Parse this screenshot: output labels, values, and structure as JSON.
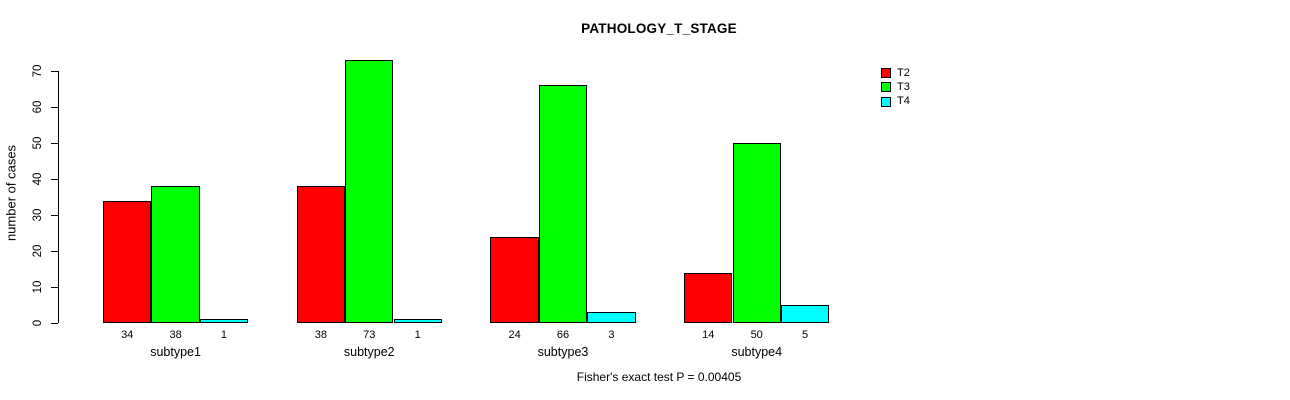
{
  "chart_data": {
    "type": "bar",
    "title": "PATHOLOGY_T_STAGE",
    "ylabel": "number of cases",
    "xlabel": "",
    "categories": [
      "subtype1",
      "subtype2",
      "subtype3",
      "subtype4"
    ],
    "series": [
      {
        "name": "T2",
        "color": "#ff0000",
        "values": [
          34,
          38,
          24,
          14
        ]
      },
      {
        "name": "T3",
        "color": "#00ff00",
        "values": [
          38,
          73,
          66,
          50
        ]
      },
      {
        "name": "T4",
        "color": "#00ffff",
        "values": [
          1,
          1,
          3,
          5
        ]
      }
    ],
    "yticks": [
      0,
      10,
      20,
      30,
      40,
      50,
      60,
      70
    ],
    "ylim": [
      0,
      73
    ],
    "grid": false,
    "show_value_labels": true,
    "legend_position": "top-right",
    "annotation": "Fisher's exact test P = 0.00405"
  }
}
